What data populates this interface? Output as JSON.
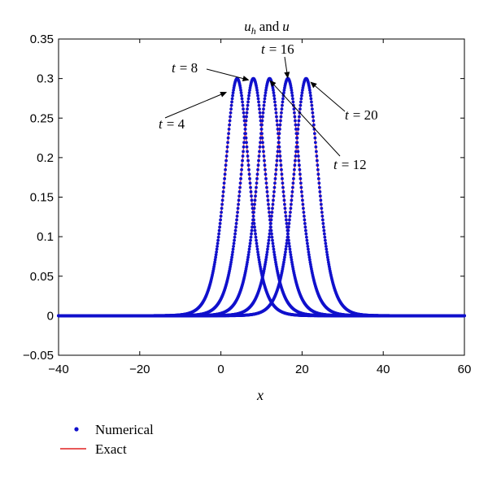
{
  "chart_data": {
    "type": "line",
    "title": "u_h and u",
    "title_parts": {
      "u": "u",
      "sub": "h",
      "and": "and",
      "u2": "u"
    },
    "xlabel": "x",
    "ylabel": "",
    "xlim": [
      -40,
      60
    ],
    "ylim": [
      -0.05,
      0.35
    ],
    "x_ticks": [
      -40,
      -20,
      0,
      20,
      40,
      60
    ],
    "x_tick_labels": [
      "−40",
      "−20",
      "0",
      "20",
      "40",
      "60"
    ],
    "y_ticks": [
      -0.05,
      0,
      0.05,
      0.1,
      0.15,
      0.2,
      0.25,
      0.3,
      0.35
    ],
    "y_tick_labels": [
      "−0.05",
      "0",
      "0.05",
      "0.1",
      "0.15",
      "0.2",
      "0.25",
      "0.3",
      "0.35"
    ],
    "grid": false,
    "legend_position": "bottom-left, outside plot",
    "pulse": {
      "amplitude": 0.3,
      "width": 4.0
    },
    "series": [
      {
        "name": "Numerical",
        "style": "dots",
        "color": "#1010cc"
      },
      {
        "name": "Exact",
        "style": "line",
        "color": "#e02020"
      }
    ],
    "curves": [
      {
        "t": 4,
        "peak_x": 4
      },
      {
        "t": 8,
        "peak_x": 8
      },
      {
        "t": 12,
        "peak_x": 12
      },
      {
        "t": 16,
        "peak_x": 16.5
      },
      {
        "t": 20,
        "peak_x": 21
      }
    ],
    "annotations": [
      {
        "text": "t = 4",
        "t_symbol": "t",
        "eq": "= 4",
        "target": [
          1.5,
          0.283
        ]
      },
      {
        "text": "t = 8",
        "t_symbol": "t",
        "eq": "= 8",
        "target": [
          7.0,
          0.298
        ]
      },
      {
        "text": "t = 12",
        "t_symbol": "t",
        "eq": "= 12",
        "target": [
          12.0,
          0.298
        ]
      },
      {
        "text": "t = 16",
        "t_symbol": "t",
        "eq": "= 16",
        "target": [
          16.5,
          0.3
        ]
      },
      {
        "text": "t = 20",
        "t_symbol": "t",
        "eq": "= 20",
        "target": [
          22.0,
          0.296
        ]
      }
    ]
  }
}
